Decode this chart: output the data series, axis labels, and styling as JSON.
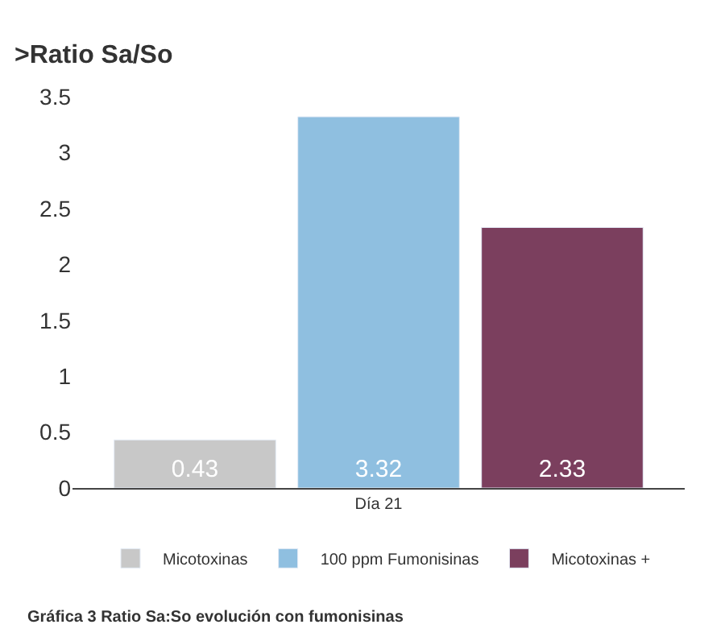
{
  "chart_data": {
    "type": "bar",
    "title": ">Ratio Sa/So",
    "categories": [
      "Día 21"
    ],
    "series": [
      {
        "name": "Micotoxinas",
        "color": "#c8c8c8",
        "values": [
          0.43
        ]
      },
      {
        "name": "100 ppm Fumonisinas",
        "color": "#8fbfe0",
        "values": [
          3.32
        ]
      },
      {
        "name": "Micotoxinas +",
        "color": "#7b3f5e",
        "values": [
          2.33
        ]
      }
    ],
    "ylim": [
      0,
      3.5
    ],
    "yticks": [
      0,
      0.5,
      1,
      1.5,
      2,
      2.5,
      3,
      3.5
    ],
    "data_labels": true,
    "legend": "bottom",
    "annotations": [
      "Gráfica 3 Ratio Sa:So evolución con fumonisinas"
    ]
  }
}
